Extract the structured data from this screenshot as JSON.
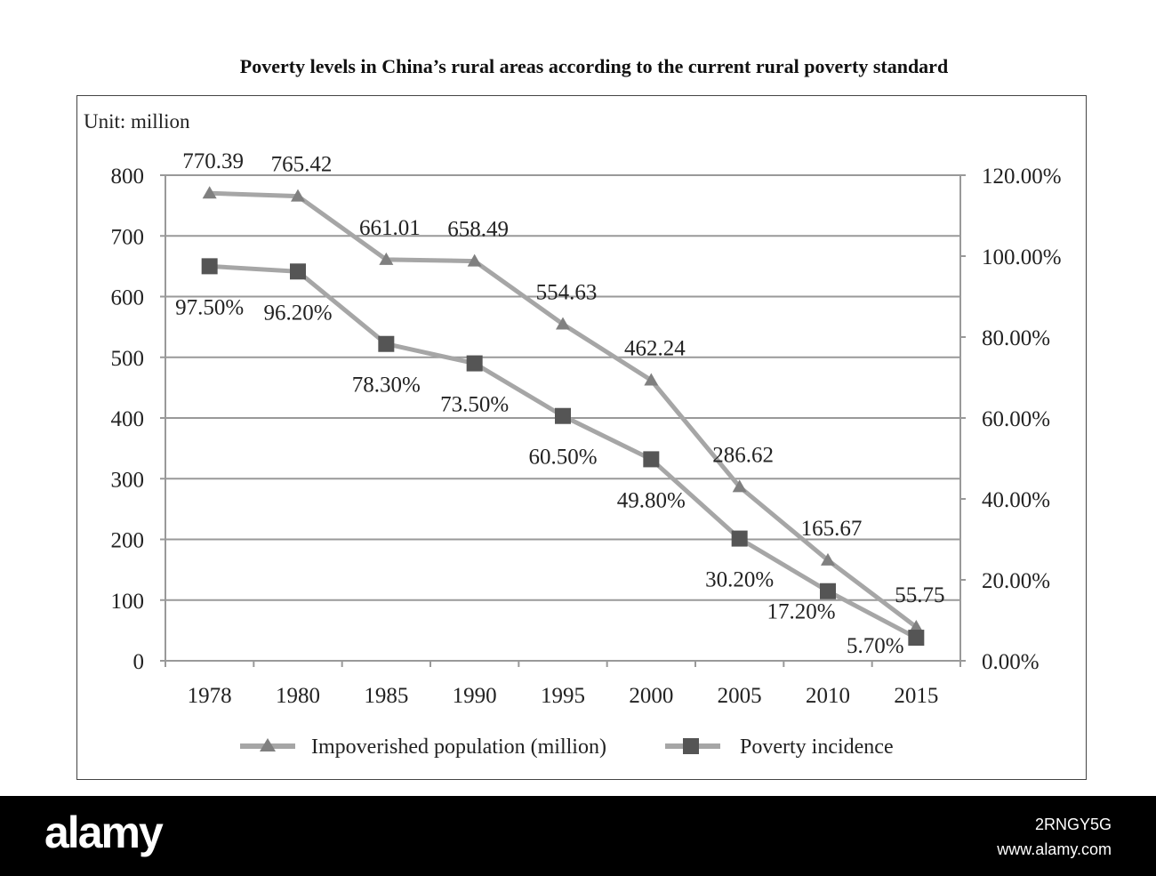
{
  "chart_data": {
    "type": "line",
    "title": "Poverty levels in China’s rural areas according to the current rural poverty standard",
    "unit_label": "Unit: million",
    "categories": [
      "1978",
      "1980",
      "1985",
      "1990",
      "1995",
      "2000",
      "2005",
      "2010",
      "2015"
    ],
    "series": [
      {
        "name": "Impoverished population (million)",
        "axis": "left",
        "marker": "triangle",
        "values": [
          770.39,
          765.42,
          661.01,
          658.49,
          554.63,
          462.24,
          286.62,
          165.67,
          55.75
        ],
        "labels": [
          "770.39",
          "765.42",
          "661.01",
          "658.49",
          "554.63",
          "462.24",
          "286.62",
          "165.67",
          "55.75"
        ]
      },
      {
        "name": "Poverty incidence",
        "axis": "right",
        "marker": "square",
        "values": [
          97.5,
          96.2,
          78.3,
          73.5,
          60.5,
          49.8,
          30.2,
          17.2,
          5.7
        ],
        "labels": [
          "97.50%",
          "96.20%",
          "78.30%",
          "73.50%",
          "60.50%",
          "49.80%",
          "30.20%",
          "17.20%",
          "5.70%"
        ]
      }
    ],
    "y_left": {
      "range": [
        0,
        800
      ],
      "ticks": [
        "0",
        "100",
        "200",
        "300",
        "400",
        "500",
        "600",
        "700",
        "800"
      ]
    },
    "y_right": {
      "range": [
        0,
        120
      ],
      "ticks": [
        "0.00%",
        "20.00%",
        "40.00%",
        "60.00%",
        "80.00%",
        "100.00%",
        "120.00%"
      ]
    },
    "grid": true,
    "legend_position": "bottom",
    "colors": {
      "line": "#a6a6a6",
      "triangle": "#808080",
      "square": "#555555",
      "grid": "#999999"
    }
  },
  "watermark": {
    "logo": "alamy",
    "image_id": "2RNGY5G",
    "site": "www.alamy.com"
  }
}
